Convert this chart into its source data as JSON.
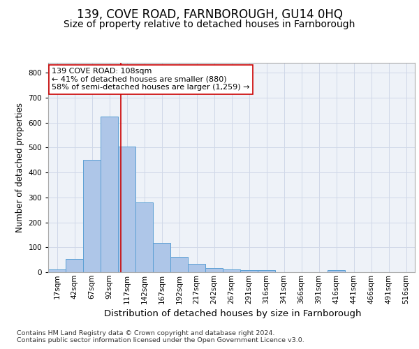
{
  "title1": "139, COVE ROAD, FARNBOROUGH, GU14 0HQ",
  "title2": "Size of property relative to detached houses in Farnborough",
  "xlabel": "Distribution of detached houses by size in Farnborough",
  "ylabel": "Number of detached properties",
  "footnote1": "Contains HM Land Registry data © Crown copyright and database right 2024.",
  "footnote2": "Contains public sector information licensed under the Open Government Licence v3.0.",
  "annotation_line1": "139 COVE ROAD: 108sqm",
  "annotation_line2": "← 41% of detached houses are smaller (880)",
  "annotation_line3": "58% of semi-detached houses are larger (1,259) →",
  "bar_color": "#aec6e8",
  "bar_edge_color": "#5a9fd4",
  "grid_color": "#d0d8e8",
  "bg_color": "#eef2f8",
  "vline_color": "#cc0000",
  "annotation_box_color": "#ffffff",
  "annotation_box_edge": "#cc0000",
  "categories": [
    "17sqm",
    "42sqm",
    "67sqm",
    "92sqm",
    "117sqm",
    "142sqm",
    "167sqm",
    "192sqm",
    "217sqm",
    "242sqm",
    "267sqm",
    "291sqm",
    "316sqm",
    "341sqm",
    "366sqm",
    "391sqm",
    "416sqm",
    "441sqm",
    "466sqm",
    "491sqm",
    "516sqm"
  ],
  "values": [
    10,
    52,
    450,
    625,
    505,
    280,
    118,
    62,
    33,
    18,
    10,
    8,
    8,
    0,
    0,
    0,
    8,
    0,
    0,
    0,
    0
  ],
  "vline_x": 108,
  "ylim": [
    0,
    840
  ],
  "yticks": [
    0,
    100,
    200,
    300,
    400,
    500,
    600,
    700,
    800
  ],
  "title1_fontsize": 12,
  "title2_fontsize": 10,
  "xlabel_fontsize": 9.5,
  "ylabel_fontsize": 8.5,
  "tick_fontsize": 7.5,
  "annotation_fontsize": 8,
  "footnote_fontsize": 6.8
}
